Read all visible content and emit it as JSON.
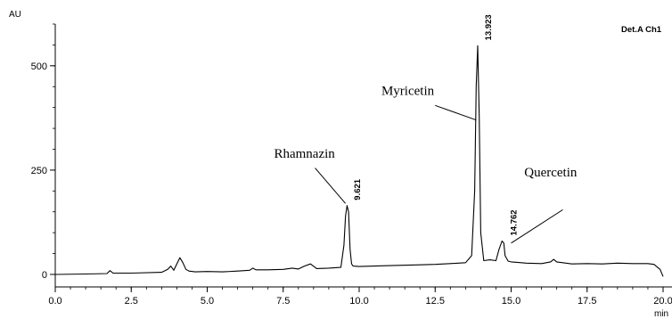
{
  "chart_data": {
    "type": "line",
    "title": "",
    "detector_label": "Det.A Ch1",
    "ylabel": "AU",
    "xlabel": "min",
    "xlim": [
      0.0,
      20.0
    ],
    "ylim": [
      -30,
      600
    ],
    "x_ticks": [
      "0.0",
      "2.5",
      "5.0",
      "7.5",
      "10.0",
      "12.5",
      "15.0",
      "17.5",
      "20.0"
    ],
    "y_ticks": [
      "0",
      "250",
      "500"
    ],
    "grid": false,
    "series": [
      {
        "x": [
          0.0,
          1.0,
          1.7,
          1.8,
          1.9,
          2.5,
          3.5,
          3.7,
          3.8,
          3.9,
          4.0,
          4.1,
          4.2,
          4.3,
          4.4,
          4.6,
          5.0,
          5.5,
          6.0,
          6.4,
          6.5,
          6.6,
          7.0,
          7.5,
          7.8,
          8.0,
          8.2,
          8.4,
          8.6,
          9.0,
          9.4,
          9.5,
          9.55,
          9.6,
          9.65,
          9.7,
          9.75,
          9.8,
          10.0,
          10.5,
          11.0,
          12.0,
          12.5,
          13.0,
          13.5,
          13.7,
          13.8,
          13.85,
          13.9,
          13.95,
          14.0,
          14.1,
          14.3,
          14.5,
          14.6,
          14.7,
          14.76,
          14.8,
          14.9,
          15.0,
          15.2,
          15.5,
          16.0,
          16.3,
          16.4,
          16.5,
          17.0,
          17.5,
          18.0,
          18.5,
          19.0,
          19.5,
          19.7,
          19.9,
          20.0
        ],
        "values": [
          0,
          1,
          2,
          9,
          3,
          3,
          5,
          12,
          20,
          10,
          25,
          40,
          28,
          12,
          8,
          6,
          7,
          6,
          8,
          10,
          15,
          11,
          11,
          12,
          15,
          13,
          20,
          25,
          14,
          15,
          17,
          70,
          140,
          165,
          150,
          60,
          25,
          20,
          19,
          20,
          21,
          23,
          24,
          26,
          28,
          45,
          200,
          450,
          548,
          380,
          100,
          33,
          35,
          33,
          60,
          80,
          75,
          45,
          32,
          30,
          29,
          27,
          26,
          30,
          36,
          30,
          25,
          26,
          25,
          27,
          26,
          26,
          24,
          12,
          -5
        ]
      }
    ],
    "peaks": [
      {
        "name": "Rhamnazin",
        "rt": "9.621",
        "x": 9.621,
        "y": 165,
        "label_x": 8.2,
        "label_y": 280
      },
      {
        "name": "Myricetin",
        "rt": "13.923",
        "x": 13.923,
        "y": 548,
        "label_x": 11.6,
        "label_y": 430
      },
      {
        "name": "Quercetin",
        "rt": "14.762",
        "x": 14.762,
        "y": 80,
        "label_x": 16.3,
        "label_y": 235
      }
    ]
  }
}
